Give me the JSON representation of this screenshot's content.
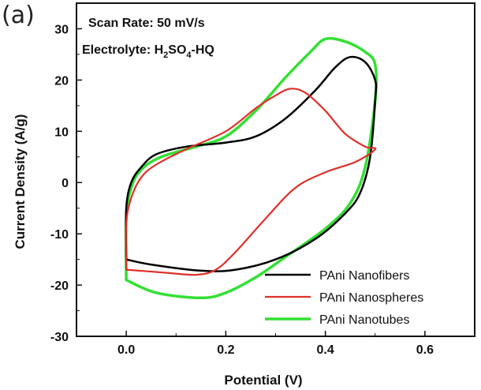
{
  "panel_label": "(a)",
  "chart_data": {
    "type": "line",
    "xlabel": "Potential (V)",
    "ylabel": "Current Density (A/g)",
    "xlim": [
      -0.1,
      0.7
    ],
    "ylim": [
      -30,
      35
    ],
    "xticks": [
      "0.0",
      "0.2",
      "0.4",
      "0.6"
    ],
    "yticks": [
      "-30",
      "-20",
      "-10",
      "0",
      "10",
      "20",
      "30"
    ],
    "annotations": {
      "scan_rate": "Scan Rate: 50 mV/s",
      "electrolyte_prefix": "Electrolyte: H",
      "electrolyte_sub1": "2",
      "electrolyte_mid": "SO",
      "electrolyte_sub2": "4",
      "electrolyte_suffix": "-HQ"
    },
    "legend_position": "bottom-right",
    "grid": false,
    "series": [
      {
        "name": "PAni Nanofibers",
        "color": "#000000",
        "points": [
          [
            0.0,
            -15
          ],
          [
            0.0,
            -5
          ],
          [
            0.01,
            0
          ],
          [
            0.03,
            3
          ],
          [
            0.06,
            5.5
          ],
          [
            0.12,
            7
          ],
          [
            0.2,
            7.8
          ],
          [
            0.26,
            9
          ],
          [
            0.32,
            12.5
          ],
          [
            0.38,
            18
          ],
          [
            0.42,
            22.5
          ],
          [
            0.45,
            24.5
          ],
          [
            0.48,
            23.5
          ],
          [
            0.5,
            20
          ],
          [
            0.5,
            16
          ],
          [
            0.49,
            5
          ],
          [
            0.47,
            -2
          ],
          [
            0.44,
            -6
          ],
          [
            0.38,
            -11
          ],
          [
            0.3,
            -15
          ],
          [
            0.22,
            -17
          ],
          [
            0.15,
            -17.2
          ],
          [
            0.05,
            -16
          ],
          [
            0.0,
            -15
          ]
        ]
      },
      {
        "name": "PAni Nanospheres",
        "color": "#e0302a",
        "points": [
          [
            0.0,
            -17
          ],
          [
            0.0,
            -8
          ],
          [
            0.01,
            -3
          ],
          [
            0.03,
            1
          ],
          [
            0.06,
            3.5
          ],
          [
            0.12,
            6.5
          ],
          [
            0.2,
            10
          ],
          [
            0.26,
            14.5
          ],
          [
            0.3,
            17
          ],
          [
            0.33,
            18.3
          ],
          [
            0.36,
            17.5
          ],
          [
            0.4,
            14
          ],
          [
            0.44,
            9.5
          ],
          [
            0.48,
            7
          ],
          [
            0.5,
            6.5
          ],
          [
            0.46,
            4
          ],
          [
            0.4,
            2
          ],
          [
            0.34,
            -1
          ],
          [
            0.28,
            -7
          ],
          [
            0.22,
            -13.5
          ],
          [
            0.18,
            -17
          ],
          [
            0.14,
            -18
          ],
          [
            0.08,
            -17.6
          ],
          [
            0.0,
            -17
          ]
        ]
      },
      {
        "name": "PAni Nanotubes",
        "color": "#33e033",
        "points": [
          [
            0.0,
            -19
          ],
          [
            0.0,
            -7
          ],
          [
            0.01,
            -1
          ],
          [
            0.03,
            2.5
          ],
          [
            0.07,
            5
          ],
          [
            0.14,
            7
          ],
          [
            0.2,
            9
          ],
          [
            0.26,
            14
          ],
          [
            0.32,
            20.5
          ],
          [
            0.37,
            25.5
          ],
          [
            0.4,
            28
          ],
          [
            0.44,
            27.5
          ],
          [
            0.48,
            25.5
          ],
          [
            0.5,
            23
          ],
          [
            0.5,
            16
          ],
          [
            0.48,
            3
          ],
          [
            0.45,
            -4
          ],
          [
            0.4,
            -9
          ],
          [
            0.32,
            -14.5
          ],
          [
            0.26,
            -18.5
          ],
          [
            0.2,
            -21.5
          ],
          [
            0.15,
            -22.5
          ],
          [
            0.06,
            -21.5
          ],
          [
            0.0,
            -19
          ]
        ]
      }
    ]
  }
}
